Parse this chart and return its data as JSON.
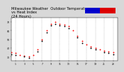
{
  "title": "Milwaukee Weather  Outdoor Temperature\nvs Heat Index\n(24 Hours)",
  "title_fontsize": 3.8,
  "background_color": "#d8d8d8",
  "plot_bg_color": "#ffffff",
  "legend_colors": [
    "#0000cc",
    "#dd0000"
  ],
  "temp_data": [
    [
      0,
      35
    ],
    [
      1,
      34
    ],
    [
      2,
      32
    ],
    [
      3,
      31
    ],
    [
      4,
      30
    ],
    [
      5,
      32
    ],
    [
      6,
      38
    ],
    [
      7,
      50
    ],
    [
      8,
      60
    ],
    [
      9,
      68
    ],
    [
      10,
      70
    ],
    [
      11,
      68
    ],
    [
      12,
      67
    ],
    [
      13,
      65
    ],
    [
      14,
      60
    ],
    [
      15,
      54
    ],
    [
      16,
      48
    ],
    [
      17,
      44
    ],
    [
      18,
      42
    ],
    [
      19,
      40
    ],
    [
      20,
      38
    ],
    [
      21,
      37
    ],
    [
      22,
      36
    ],
    [
      23,
      35
    ]
  ],
  "heat_data": [
    [
      0,
      33
    ],
    [
      1,
      32
    ],
    [
      3,
      30
    ],
    [
      4,
      29
    ],
    [
      6,
      36
    ],
    [
      7,
      48
    ],
    [
      8,
      58
    ],
    [
      9,
      66
    ],
    [
      10,
      68
    ],
    [
      11,
      66
    ],
    [
      12,
      65
    ],
    [
      13,
      63
    ],
    [
      15,
      52
    ],
    [
      16,
      46
    ],
    [
      18,
      40
    ],
    [
      19,
      38
    ],
    [
      21,
      35
    ],
    [
      22,
      34
    ],
    [
      23,
      33
    ]
  ],
  "ylim": [
    25,
    75
  ],
  "ytick_vals": [
    30,
    40,
    50,
    60,
    70
  ],
  "ytick_labels": [
    "30",
    "40",
    "50",
    "60",
    "70"
  ],
  "xtick_vals": [
    1,
    3,
    5,
    7,
    9,
    11,
    13,
    15,
    17,
    19,
    21,
    23
  ],
  "xtick_labels": [
    "1",
    "3",
    "5",
    "7",
    "9",
    "11",
    "13",
    "15",
    "17",
    "19",
    "21",
    "23"
  ],
  "grid_x_vals": [
    1,
    3,
    5,
    7,
    9,
    11,
    13,
    15,
    17,
    19,
    21,
    23
  ],
  "grid_color": "#aaaaaa",
  "temp_color": "#ff0000",
  "heat_color": "#000000",
  "dot_size": 1.8
}
